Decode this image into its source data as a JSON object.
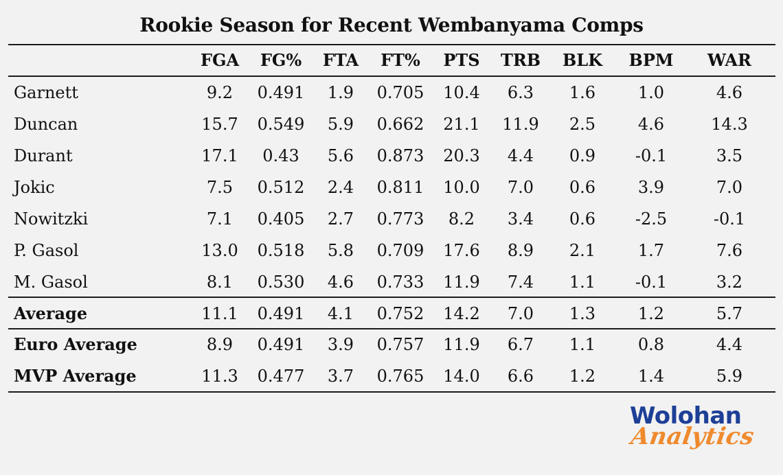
{
  "title": "Rookie Season for Recent Wembanyama Comps",
  "table": {
    "columns": [
      "FGA",
      "FG%",
      "FTA",
      "FT%",
      "PTS",
      "TRB",
      "BLK",
      "BPM",
      "WAR"
    ],
    "players": [
      {
        "name": "Garnett",
        "values": [
          "9.2",
          "0.491",
          "1.9",
          "0.705",
          "10.4",
          "6.3",
          "1.6",
          "1.0",
          "4.6"
        ]
      },
      {
        "name": "Duncan",
        "values": [
          "15.7",
          "0.549",
          "5.9",
          "0.662",
          "21.1",
          "11.9",
          "2.5",
          "4.6",
          "14.3"
        ]
      },
      {
        "name": "Durant",
        "values": [
          "17.1",
          "0.43",
          "5.6",
          "0.873",
          "20.3",
          "4.4",
          "0.9",
          "-0.1",
          "3.5"
        ]
      },
      {
        "name": "Jokic",
        "values": [
          "7.5",
          "0.512",
          "2.4",
          "0.811",
          "10.0",
          "7.0",
          "0.6",
          "3.9",
          "7.0"
        ]
      },
      {
        "name": "Nowitzki",
        "values": [
          "7.1",
          "0.405",
          "2.7",
          "0.773",
          "8.2",
          "3.4",
          "0.6",
          "-2.5",
          "-0.1"
        ]
      },
      {
        "name": "P. Gasol",
        "values": [
          "13.0",
          "0.518",
          "5.8",
          "0.709",
          "17.6",
          "8.9",
          "2.1",
          "1.7",
          "7.6"
        ]
      },
      {
        "name": "M. Gasol",
        "values": [
          "8.1",
          "0.530",
          "4.6",
          "0.733",
          "11.9",
          "7.4",
          "1.1",
          "-0.1",
          "3.2"
        ]
      }
    ],
    "average": {
      "name": "Average",
      "values": [
        "11.1",
        "0.491",
        "4.1",
        "0.752",
        "14.2",
        "7.0",
        "1.3",
        "1.2",
        "5.7"
      ]
    },
    "summaries": [
      {
        "name": "Euro Average",
        "values": [
          "8.9",
          "0.491",
          "3.9",
          "0.757",
          "11.9",
          "6.7",
          "1.1",
          "0.8",
          "4.4"
        ]
      },
      {
        "name": "MVP Average",
        "values": [
          "11.3",
          "0.477",
          "3.7",
          "0.765",
          "14.0",
          "6.6",
          "1.2",
          "1.4",
          "5.9"
        ]
      }
    ]
  },
  "logo": {
    "line1": "Wolohan",
    "line2": "Analytics",
    "colors": {
      "line1": "#1e3f96",
      "line2": "#ef8a2e"
    }
  }
}
